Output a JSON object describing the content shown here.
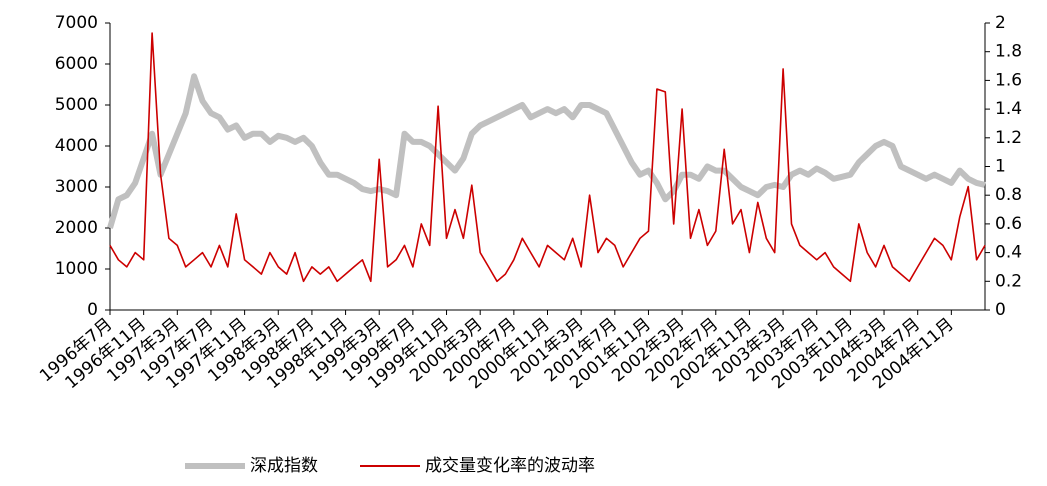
{
  "chart_data": {
    "type": "line",
    "categories": [
      "1996年7月",
      null,
      null,
      null,
      "1996年11月",
      null,
      null,
      null,
      "1997年3月",
      null,
      null,
      null,
      "1997年7月",
      null,
      null,
      null,
      "1997年11月",
      null,
      null,
      null,
      "1998年3月",
      null,
      null,
      null,
      "1998年7月",
      null,
      null,
      null,
      "1998年11月",
      null,
      null,
      null,
      "1999年3月",
      null,
      null,
      null,
      "1999年7月",
      null,
      null,
      null,
      "1999年11月",
      null,
      null,
      null,
      "2000年3月",
      null,
      null,
      null,
      "2000年7月",
      null,
      null,
      null,
      "2000年11月",
      null,
      null,
      null,
      "2001年3月",
      null,
      null,
      null,
      "2001年7月",
      null,
      null,
      null,
      "2001年11月",
      null,
      null,
      null,
      "2002年3月",
      null,
      null,
      null,
      "2002年7月",
      null,
      null,
      null,
      "2002年11月",
      null,
      null,
      null,
      "2003年3月",
      null,
      null,
      null,
      "2003年7月",
      null,
      null,
      null,
      "2003年11月",
      null,
      null,
      null,
      "2004年3月",
      null,
      null,
      null,
      "2004年7月",
      null,
      null,
      null,
      "2004年11月",
      null,
      null,
      null,
      null
    ],
    "series": [
      {
        "name": "深成指数",
        "color": "#c0c0c0",
        "values": [
          2000,
          2700,
          2800,
          3100,
          3700,
          4300,
          3300,
          3800,
          4300,
          4800,
          5700,
          5100,
          4800,
          4700,
          4400,
          4500,
          4200,
          4300,
          4300,
          4100,
          4250,
          4200,
          4100,
          4200,
          4000,
          3600,
          3300,
          3300,
          3200,
          3100,
          2950,
          2900,
          2950,
          2900,
          2800,
          4300,
          4100,
          4100,
          4000,
          3800,
          3600,
          3400,
          3700,
          4300,
          4500,
          4600,
          4700,
          4800,
          4900,
          5000,
          4700,
          4800,
          4900,
          4800,
          4900,
          4700,
          5000,
          5000,
          4900,
          4800,
          4400,
          4000,
          3600,
          3300,
          3400,
          3100,
          2700,
          2900,
          3300,
          3300,
          3200,
          3500,
          3400,
          3400,
          3200,
          3000,
          2900,
          2800,
          3000,
          3050,
          3000,
          3300,
          3400,
          3300,
          3450,
          3350,
          3200,
          3250,
          3300,
          3600,
          3800,
          4000,
          4100,
          4000,
          3500,
          3400,
          3300,
          3200,
          3300,
          3200,
          3100,
          3400,
          3200,
          3100,
          3050
        ]
      },
      {
        "name": "成交量变化率的波动率",
        "color": "#cc0000",
        "axis": "y2",
        "values": [
          0.45,
          0.35,
          0.3,
          0.4,
          0.35,
          1.93,
          0.95,
          0.5,
          0.45,
          0.3,
          0.35,
          0.4,
          0.3,
          0.45,
          0.3,
          0.67,
          0.35,
          0.3,
          0.25,
          0.4,
          0.3,
          0.25,
          0.4,
          0.2,
          0.3,
          0.25,
          0.3,
          0.2,
          0.25,
          0.3,
          0.35,
          0.2,
          1.05,
          0.3,
          0.35,
          0.45,
          0.3,
          0.6,
          0.45,
          1.42,
          0.5,
          0.7,
          0.5,
          0.87,
          0.4,
          0.3,
          0.2,
          0.25,
          0.35,
          0.5,
          0.4,
          0.3,
          0.45,
          0.4,
          0.35,
          0.5,
          0.3,
          0.8,
          0.4,
          0.5,
          0.45,
          0.3,
          0.4,
          0.5,
          0.55,
          1.54,
          1.52,
          0.6,
          1.4,
          0.5,
          0.7,
          0.45,
          0.55,
          1.12,
          0.6,
          0.7,
          0.4,
          0.75,
          0.5,
          0.4,
          1.68,
          0.6,
          0.45,
          0.4,
          0.35,
          0.4,
          0.3,
          0.25,
          0.2,
          0.6,
          0.4,
          0.3,
          0.45,
          0.3,
          0.25,
          0.2,
          0.3,
          0.4,
          0.5,
          0.45,
          0.35,
          0.65,
          0.86,
          0.35,
          0.45
        ]
      }
    ],
    "ylim": [
      0,
      7000
    ],
    "yticks": [
      0,
      1000,
      2000,
      3000,
      4000,
      5000,
      6000,
      7000
    ],
    "y2lim": [
      0,
      2
    ],
    "y2ticks": [
      0,
      0.2,
      0.4,
      0.6,
      0.8,
      1,
      1.2,
      1.4,
      1.6,
      1.8,
      2
    ],
    "grid": false,
    "legend": "bottom"
  }
}
